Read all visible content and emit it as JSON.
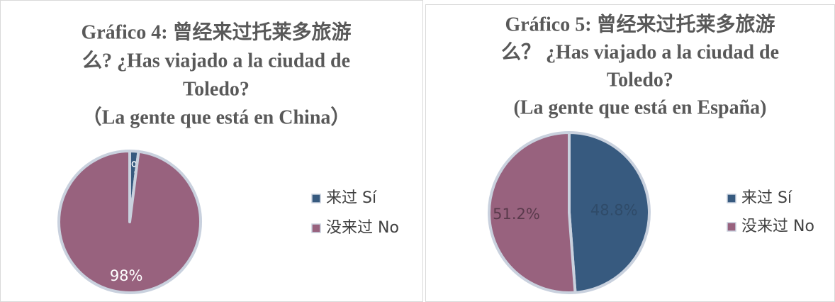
{
  "chart_data": [
    {
      "type": "pie",
      "title": [
        "Gráfico 4: 曾经来过托莱多旅游",
        "么? ¿Has viajado a la ciudad de",
        "Toledo?",
        "（La gente que está en China）"
      ],
      "categories": [
        "来过 Sí",
        "没来过 No"
      ],
      "values": [
        2,
        98
      ],
      "value_labels": [
        "2%",
        "98%"
      ],
      "colors": [
        "#375a7f",
        "#98627e"
      ],
      "legend": "right"
    },
    {
      "type": "pie",
      "title": [
        "Gráfico 5: 曾经来过托莱多旅游",
        "么？ ¿Has viajado a la ciudad de",
        "Toledo?",
        "(La gente que está en España)"
      ],
      "categories": [
        "来过 Sí",
        "没来过 No"
      ],
      "values": [
        48.8,
        51.2
      ],
      "value_labels": [
        "48.8%",
        "51.2%"
      ],
      "colors": [
        "#375a7f",
        "#98627e"
      ],
      "legend": "right"
    }
  ]
}
